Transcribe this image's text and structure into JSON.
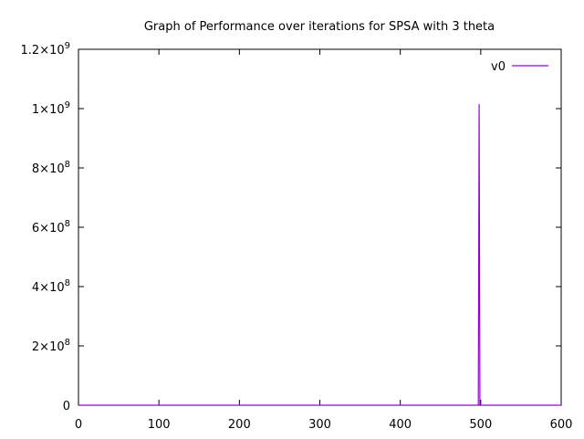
{
  "chart_data": {
    "type": "line",
    "title": "Graph of Performance over iterations for SPSA with 3 theta",
    "xlabel": "",
    "ylabel": "",
    "xlim": [
      0,
      600
    ],
    "ylim": [
      0,
      1200000000
    ],
    "x_ticks": [
      "0",
      "100",
      "200",
      "300",
      "400",
      "500",
      "600"
    ],
    "y_ticks": [
      {
        "base": "0",
        "exp": ""
      },
      {
        "base": "2×10",
        "exp": "8"
      },
      {
        "base": "4×10",
        "exp": "8"
      },
      {
        "base": "6×10",
        "exp": "8"
      },
      {
        "base": "8×10",
        "exp": "8"
      },
      {
        "base": "1×10",
        "exp": "9"
      },
      {
        "base": "1.2×10",
        "exp": "9"
      }
    ],
    "grid": false,
    "legend_position": "top-right",
    "series": [
      {
        "name": "v0",
        "color": "#9400d3",
        "x": [
          0,
          497,
          498,
          499,
          500,
          600
        ],
        "y": [
          0,
          0,
          1015000000,
          0,
          0,
          0
        ]
      }
    ]
  }
}
